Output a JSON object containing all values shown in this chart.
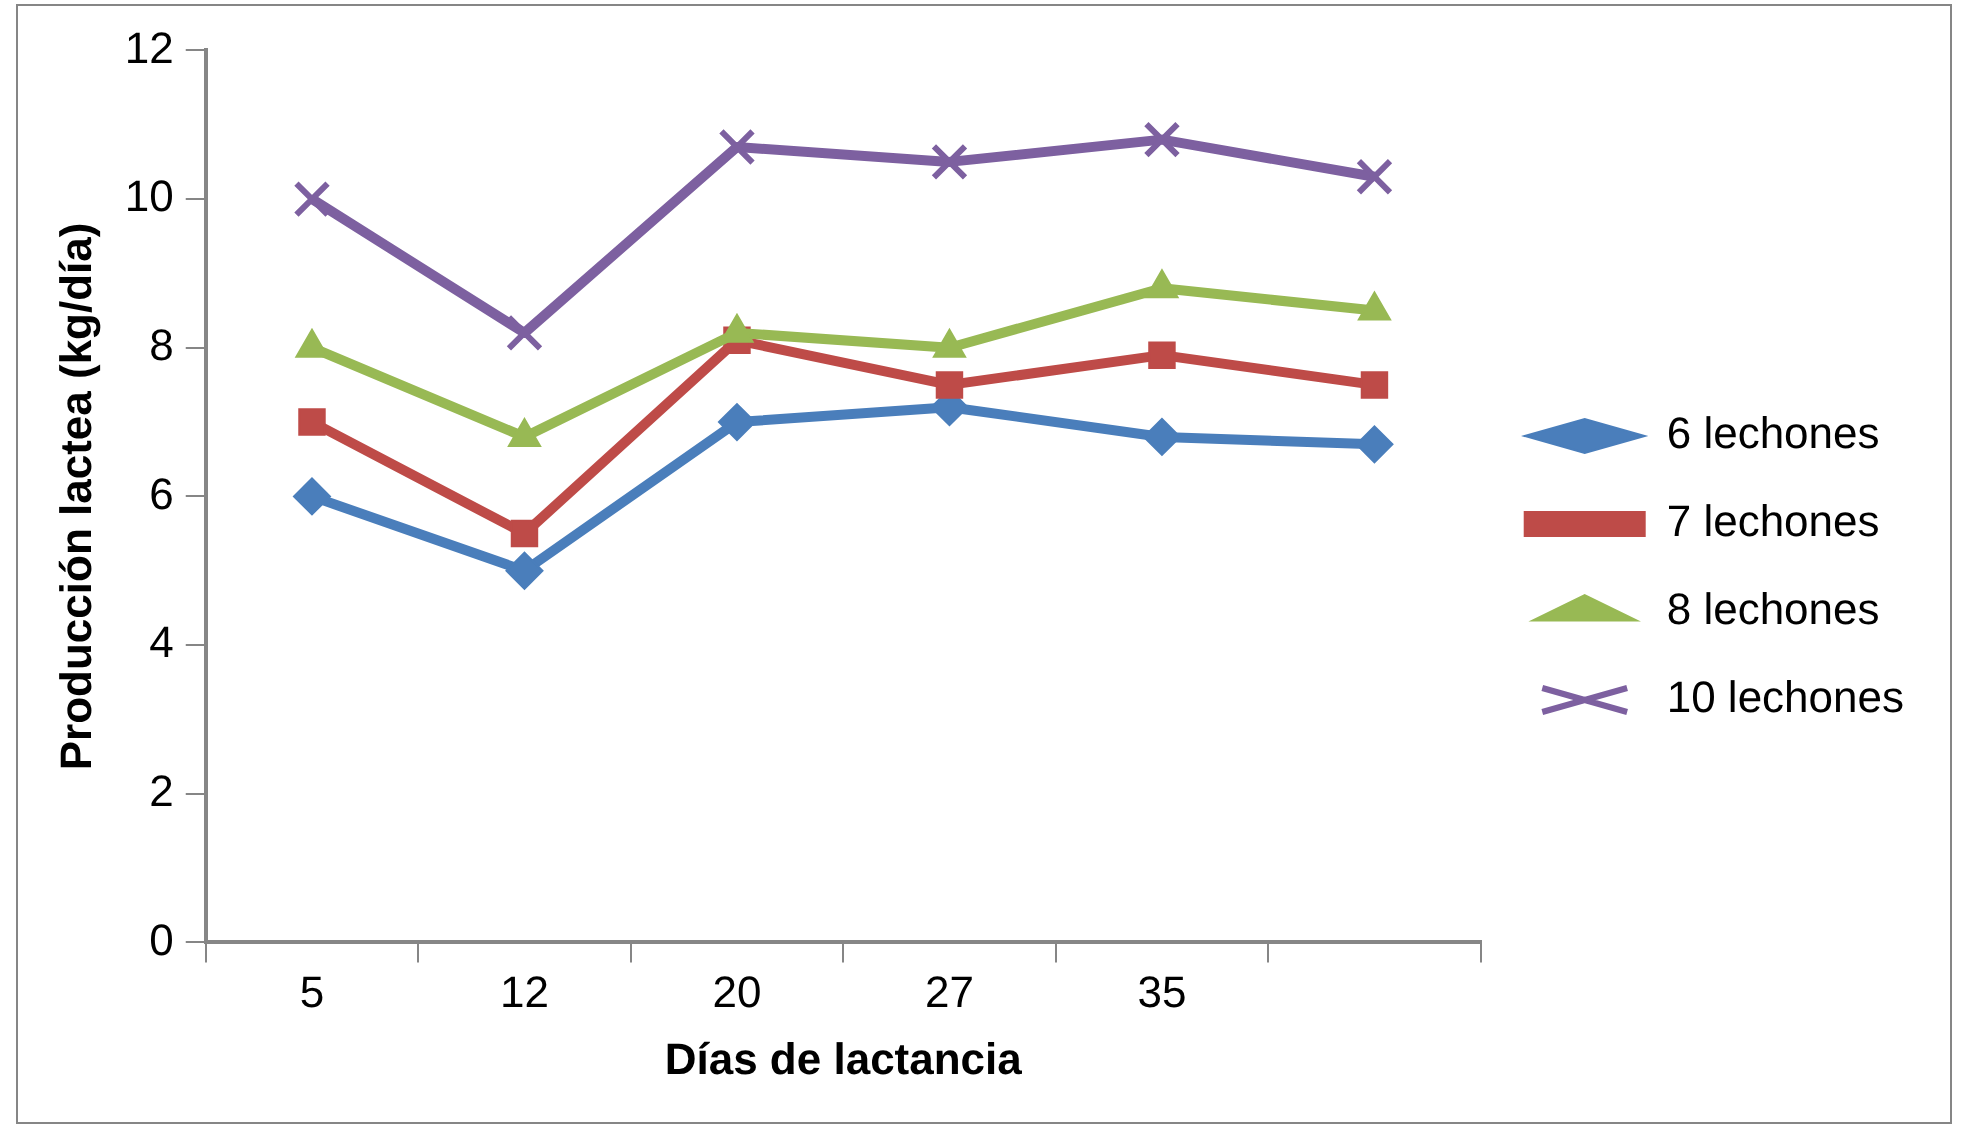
{
  "chart_data": {
    "type": "line",
    "xlabel": "Días de lactancia",
    "ylabel": "Producción lactea (kg/día)",
    "categories": [
      "5",
      "12",
      "20",
      "27",
      "35",
      null
    ],
    "series": [
      {
        "name": "6 lechones",
        "color": "#4a7ebb",
        "marker": "diamond",
        "values": [
          6,
          5,
          7,
          7.2,
          6.8,
          6.7
        ]
      },
      {
        "name": "7 lechones",
        "color": "#be4b48",
        "marker": "square",
        "values": [
          7,
          5.5,
          8.1,
          7.5,
          7.9,
          7.5
        ]
      },
      {
        "name": "8 lechones",
        "color": "#98b954",
        "marker": "triangle",
        "values": [
          8,
          6.8,
          8.2,
          8,
          8.8,
          8.5
        ]
      },
      {
        "name": "10 lechones",
        "color": "#7d60a0",
        "marker": "cross",
        "values": [
          10,
          8.2,
          10.7,
          10.5,
          10.8,
          10.3
        ]
      }
    ],
    "ylim": [
      0,
      12
    ],
    "yticks": [
      0,
      2,
      4,
      6,
      8,
      10,
      12
    ],
    "grid": false,
    "legend": "right"
  }
}
